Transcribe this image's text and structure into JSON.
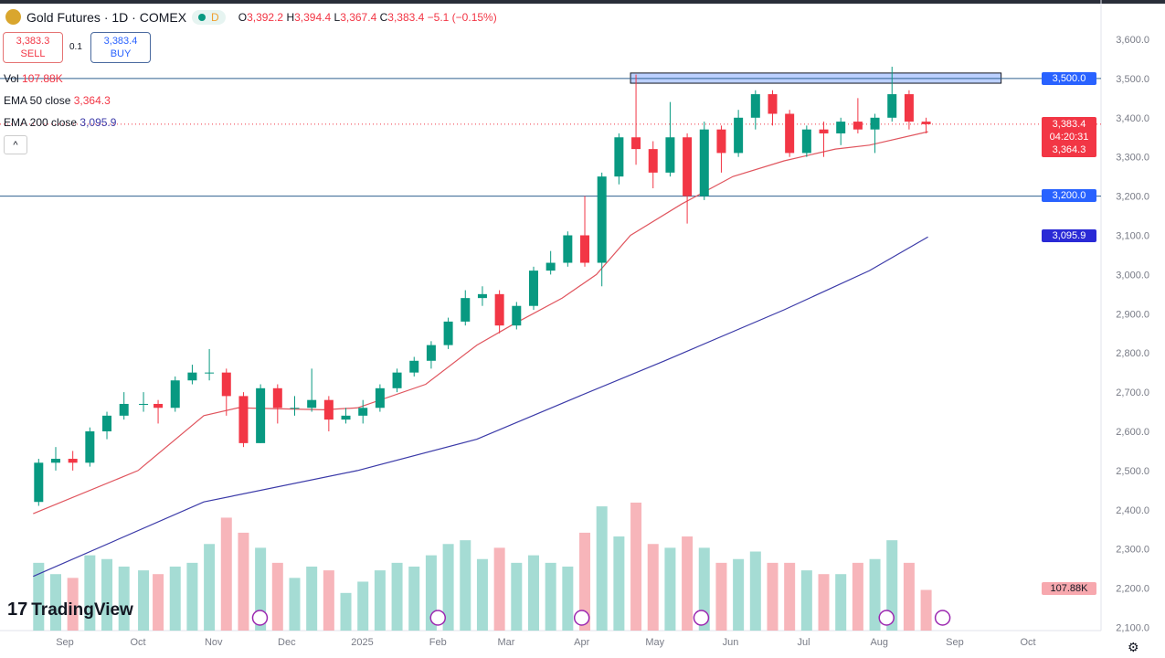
{
  "header": {
    "title": "Gold Futures · 1D · COMEX",
    "interval_badge": "D",
    "o_label": "O",
    "o": "3,392.2",
    "h_label": "H",
    "h": "3,394.4",
    "l_label": "L",
    "l": "3,367.4",
    "c_label": "C",
    "c": "3,383.4",
    "change": "−5.1 (−0.15%)"
  },
  "trade": {
    "sell_price": "3,383.3",
    "sell_label": "SELL",
    "spread": "0.1",
    "buy_price": "3,383.4",
    "buy_label": "BUY"
  },
  "indicators": {
    "vol_label": "Vol",
    "vol_value": "107.88K",
    "ema50_label": "EMA 50 close",
    "ema50_value": "3,364.3",
    "ema200_label": "EMA 200 close",
    "ema200_value": "3,095.9"
  },
  "price_tags": {
    "level_high": "3,500.0",
    "last": "3,383.4",
    "countdown": "04:20:31",
    "ema50": "3,364.3",
    "level_low": "3,200.0",
    "ema200": "3,095.9",
    "volume": "107.88K"
  },
  "collapse_icon": "chevron-up-icon",
  "logo": "TradingView",
  "colors": {
    "up": "#089981",
    "down": "#f23645",
    "ema50": "#e0555e",
    "ema200": "#3b3aa8",
    "level": "#2962ff",
    "zone": "#bbd0ff"
  },
  "chart_data": {
    "type": "candlestick",
    "interval_shown": "1D (approximated weekly here)",
    "ylim": [
      2100,
      3600
    ],
    "y_ticks": [
      2100,
      2200,
      2300,
      2400,
      2500,
      2600,
      2700,
      2800,
      2900,
      3000,
      3100,
      3200,
      3300,
      3400,
      3500,
      3600
    ],
    "y_tick_labels": [
      "2,100.0",
      "2,200.0",
      "2,300.0",
      "2,400.0",
      "2,500.0",
      "2,600.0",
      "2,700.0",
      "2,800.0",
      "2,900.0",
      "3,000.0",
      "3,100.0",
      "3,200.0",
      "3,300.0",
      "3,400.0",
      "3,500.0",
      "3,600.0"
    ],
    "x_ticks": [
      {
        "date": "2024-09-01",
        "label": "Sep"
      },
      {
        "date": "2024-10-01",
        "label": "Oct"
      },
      {
        "date": "2024-11-01",
        "label": "Nov"
      },
      {
        "date": "2024-12-01",
        "label": "Dec"
      },
      {
        "date": "2025-01-01",
        "label": "2025"
      },
      {
        "date": "2025-02-01",
        "label": "Feb"
      },
      {
        "date": "2025-03-01",
        "label": "Mar"
      },
      {
        "date": "2025-04-01",
        "label": "Apr"
      },
      {
        "date": "2025-05-01",
        "label": "May"
      },
      {
        "date": "2025-06-01",
        "label": "Jun"
      },
      {
        "date": "2025-07-01",
        "label": "Jul"
      },
      {
        "date": "2025-08-01",
        "label": "Aug"
      },
      {
        "date": "2025-09-01",
        "label": "Sep"
      },
      {
        "date": "2025-10-01",
        "label": "Oct"
      }
    ],
    "candles": [
      [
        "2024-08-19",
        2420,
        2530,
        2410,
        2520,
        180
      ],
      [
        "2024-08-26",
        2520,
        2560,
        2500,
        2530,
        150
      ],
      [
        "2024-09-02",
        2530,
        2550,
        2500,
        2520,
        140
      ],
      [
        "2024-09-09",
        2520,
        2610,
        2510,
        2600,
        200
      ],
      [
        "2024-09-16",
        2600,
        2650,
        2580,
        2640,
        190
      ],
      [
        "2024-09-23",
        2640,
        2700,
        2630,
        2670,
        170
      ],
      [
        "2024-10-01",
        2670,
        2700,
        2650,
        2670,
        160
      ],
      [
        "2024-10-07",
        2670,
        2680,
        2620,
        2660,
        150
      ],
      [
        "2024-10-14",
        2660,
        2740,
        2650,
        2730,
        170
      ],
      [
        "2024-10-21",
        2730,
        2770,
        2720,
        2750,
        180
      ],
      [
        "2024-10-28",
        2750,
        2810,
        2730,
        2750,
        230
      ],
      [
        "2024-11-04",
        2750,
        2760,
        2640,
        2690,
        300
      ],
      [
        "2024-11-11",
        2690,
        2700,
        2560,
        2570,
        260
      ],
      [
        "2024-11-18",
        2570,
        2720,
        2570,
        2710,
        220
      ],
      [
        "2024-11-25",
        2710,
        2720,
        2620,
        2660,
        180
      ],
      [
        "2024-12-02",
        2660,
        2690,
        2640,
        2660,
        140
      ],
      [
        "2024-12-09",
        2660,
        2760,
        2650,
        2680,
        170
      ],
      [
        "2024-12-16",
        2680,
        2690,
        2600,
        2630,
        160
      ],
      [
        "2024-12-23",
        2630,
        2660,
        2620,
        2640,
        100
      ],
      [
        "2024-12-30",
        2640,
        2680,
        2620,
        2660,
        130
      ],
      [
        "2025-01-06",
        2660,
        2720,
        2650,
        2710,
        160
      ],
      [
        "2025-01-13",
        2710,
        2760,
        2700,
        2750,
        180
      ],
      [
        "2025-01-20",
        2750,
        2790,
        2740,
        2780,
        170
      ],
      [
        "2025-01-27",
        2780,
        2830,
        2760,
        2820,
        200
      ],
      [
        "2025-02-03",
        2820,
        2890,
        2810,
        2880,
        230
      ],
      [
        "2025-02-10",
        2880,
        2960,
        2870,
        2940,
        240
      ],
      [
        "2025-02-17",
        2940,
        2970,
        2920,
        2950,
        190
      ],
      [
        "2025-02-24",
        2950,
        2960,
        2850,
        2870,
        220
      ],
      [
        "2025-03-03",
        2870,
        2930,
        2860,
        2920,
        180
      ],
      [
        "2025-03-10",
        2920,
        3020,
        2910,
        3010,
        200
      ],
      [
        "2025-03-17",
        3010,
        3060,
        3000,
        3030,
        180
      ],
      [
        "2025-03-24",
        3030,
        3110,
        3020,
        3100,
        170
      ],
      [
        "2025-03-31",
        3100,
        3200,
        3020,
        3030,
        260
      ],
      [
        "2025-04-07",
        3030,
        3260,
        2970,
        3250,
        330
      ],
      [
        "2025-04-14",
        3250,
        3360,
        3230,
        3350,
        250
      ],
      [
        "2025-04-21",
        3350,
        3510,
        3280,
        3320,
        340
      ],
      [
        "2025-04-28",
        3320,
        3340,
        3220,
        3260,
        230
      ],
      [
        "2025-05-05",
        3260,
        3440,
        3250,
        3350,
        220
      ],
      [
        "2025-05-12",
        3350,
        3360,
        3130,
        3200,
        250
      ],
      [
        "2025-05-19",
        3200,
        3390,
        3190,
        3370,
        220
      ],
      [
        "2025-05-26",
        3370,
        3380,
        3260,
        3310,
        180
      ],
      [
        "2025-06-02",
        3310,
        3420,
        3300,
        3400,
        190
      ],
      [
        "2025-06-09",
        3400,
        3470,
        3370,
        3460,
        210
      ],
      [
        "2025-06-16",
        3460,
        3470,
        3380,
        3410,
        180
      ],
      [
        "2025-06-23",
        3410,
        3420,
        3300,
        3310,
        180
      ],
      [
        "2025-06-30",
        3310,
        3380,
        3300,
        3370,
        160
      ],
      [
        "2025-07-07",
        3370,
        3390,
        3300,
        3360,
        150
      ],
      [
        "2025-07-14",
        3360,
        3400,
        3330,
        3390,
        150
      ],
      [
        "2025-07-21",
        3390,
        3450,
        3360,
        3370,
        180
      ],
      [
        "2025-07-28",
        3370,
        3410,
        3310,
        3400,
        190
      ],
      [
        "2025-08-04",
        3400,
        3530,
        3390,
        3460,
        240
      ],
      [
        "2025-08-11",
        3460,
        3470,
        3370,
        3390,
        180
      ],
      [
        "2025-08-18",
        3390,
        3400,
        3360,
        3383.4,
        108
      ]
    ],
    "candle_fields": [
      "date",
      "open",
      "high",
      "low",
      "close",
      "volume_k"
    ],
    "ema50": [
      [
        "2024-08-19",
        2390
      ],
      [
        "2024-10-01",
        2500
      ],
      [
        "2024-10-28",
        2640
      ],
      [
        "2024-11-11",
        2660
      ],
      [
        "2024-12-16",
        2655
      ],
      [
        "2024-12-30",
        2660
      ],
      [
        "2025-01-27",
        2720
      ],
      [
        "2025-02-17",
        2820
      ],
      [
        "2025-03-03",
        2870
      ],
      [
        "2025-03-24",
        2940
      ],
      [
        "2025-04-07",
        3000
      ],
      [
        "2025-04-21",
        3100
      ],
      [
        "2025-05-12",
        3180
      ],
      [
        "2025-06-02",
        3250
      ],
      [
        "2025-06-23",
        3290
      ],
      [
        "2025-07-14",
        3320
      ],
      [
        "2025-07-28",
        3330
      ],
      [
        "2025-08-21",
        3364.3
      ]
    ],
    "ema200": [
      [
        "2024-08-19",
        2230
      ],
      [
        "2024-10-28",
        2420
      ],
      [
        "2024-12-30",
        2500
      ],
      [
        "2025-02-17",
        2580
      ],
      [
        "2025-03-31",
        2690
      ],
      [
        "2025-05-05",
        2780
      ],
      [
        "2025-06-23",
        2910
      ],
      [
        "2025-07-28",
        3010
      ],
      [
        "2025-08-21",
        3095.9
      ]
    ],
    "horizontal_levels": [
      3500,
      3200
    ],
    "resistance_zone": {
      "from": "2025-04-21",
      "to": "2025-09-20",
      "low": 3488,
      "high": 3514
    },
    "last_price": 3383.4
  }
}
